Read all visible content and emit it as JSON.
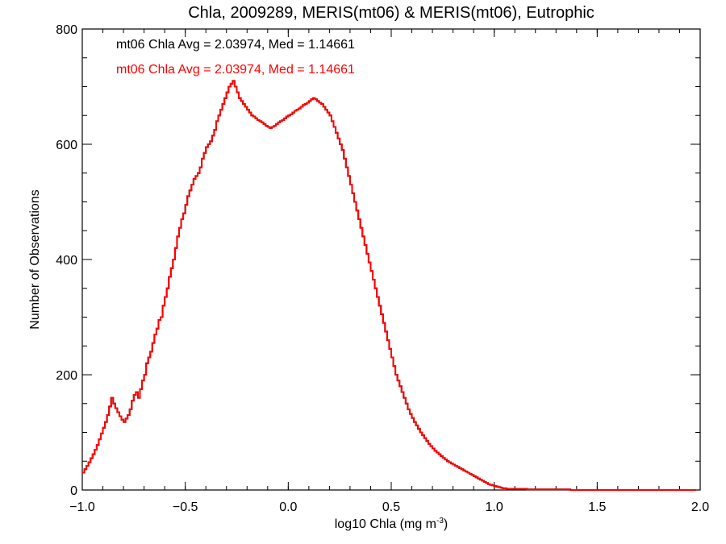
{
  "chart_data": {
    "type": "histogram",
    "title": "Chla, 2009289, MERIS(mt06) & MERIS(mt06), Eutrophic",
    "xlabel": "log10 Chla (mg m",
    "xlabel_sup": "-3",
    "xlabel_tail": ")",
    "ylabel": "Number of Observations",
    "xlim": [
      -1.0,
      2.0
    ],
    "ylim": [
      0,
      800
    ],
    "xticks": [
      -1.0,
      -0.5,
      0.0,
      0.5,
      1.0,
      1.5,
      2.0
    ],
    "xtick_labels": [
      "−1.0",
      "−0.5",
      "0.0",
      "0.5",
      "1.0",
      "1.5",
      "2.0"
    ],
    "yticks": [
      0,
      200,
      400,
      600,
      800
    ],
    "ytick_labels": [
      "0",
      "200",
      "400",
      "600",
      "800"
    ],
    "bin_start": -1.0,
    "bin_width": 0.01,
    "series": [
      {
        "name": "mt06 Chla Avg = 2.03974, Med = 1.14661",
        "color": "#000000",
        "values": [
          30,
          36,
          42,
          48,
          55,
          62,
          70,
          78,
          88,
          98,
          108,
          118,
          130,
          145,
          160,
          150,
          142,
          135,
          128,
          122,
          118,
          124,
          130,
          140,
          155,
          165,
          170,
          160,
          175,
          190,
          200,
          220,
          230,
          240,
          255,
          270,
          280,
          295,
          300,
          320,
          335,
          350,
          370,
          385,
          400,
          420,
          440,
          455,
          470,
          480,
          495,
          510,
          520,
          530,
          540,
          545,
          550,
          560,
          575,
          585,
          595,
          600,
          605,
          615,
          625,
          640,
          650,
          660,
          670,
          680,
          690,
          700,
          705,
          710,
          700,
          690,
          680,
          675,
          670,
          665,
          660,
          655,
          650,
          648,
          645,
          642,
          640,
          638,
          635,
          632,
          630,
          628,
          630,
          632,
          635,
          638,
          640,
          642,
          645,
          648,
          650,
          652,
          655,
          658,
          660,
          662,
          665,
          668,
          670,
          672,
          675,
          678,
          680,
          678,
          675,
          672,
          670,
          665,
          660,
          655,
          650,
          640,
          630,
          620,
          610,
          600,
          590,
          575,
          560,
          545,
          530,
          515,
          500,
          485,
          470,
          455,
          440,
          425,
          410,
          395,
          380,
          365,
          350,
          335,
          320,
          305,
          290,
          275,
          260,
          245,
          230,
          215,
          200,
          190,
          180,
          170,
          160,
          150,
          140,
          132,
          125,
          118,
          112,
          106,
          100,
          95,
          90,
          85,
          80,
          76,
          72,
          68,
          65,
          62,
          59,
          56,
          53,
          50,
          48,
          46,
          44,
          42,
          40,
          38,
          36,
          34,
          32,
          30,
          28,
          26,
          24,
          22,
          20,
          18,
          16,
          14,
          12,
          10,
          9,
          8,
          7,
          6,
          5,
          4,
          3,
          3,
          2,
          2,
          2,
          2,
          2,
          2,
          2,
          2,
          2,
          2,
          1,
          1,
          1,
          1,
          1,
          1,
          1,
          1,
          1,
          1,
          1,
          1,
          1,
          1,
          1,
          1,
          1,
          1,
          1,
          1,
          1,
          0,
          0,
          0,
          0,
          0,
          0,
          0,
          0,
          0,
          0,
          0,
          0,
          0,
          0,
          0,
          0,
          0,
          0,
          0,
          0,
          0,
          0,
          0,
          0,
          0,
          0,
          0,
          0,
          0,
          0,
          0,
          0,
          0,
          0,
          0,
          0,
          0,
          0,
          0,
          0,
          0,
          0,
          0,
          0,
          0,
          0,
          0,
          0,
          0,
          0,
          0,
          0,
          0,
          0,
          0,
          0,
          0,
          0,
          0,
          0,
          0
        ]
      },
      {
        "name": "mt06 Chla Avg = 2.03974, Med = 1.14661",
        "color": "#ff0000",
        "values": [
          30,
          36,
          42,
          48,
          55,
          62,
          70,
          78,
          88,
          98,
          108,
          118,
          130,
          145,
          160,
          150,
          142,
          135,
          128,
          122,
          118,
          124,
          130,
          140,
          155,
          165,
          170,
          160,
          175,
          190,
          200,
          220,
          230,
          240,
          255,
          270,
          280,
          295,
          300,
          320,
          335,
          350,
          370,
          385,
          400,
          420,
          440,
          455,
          470,
          480,
          495,
          510,
          520,
          530,
          540,
          545,
          550,
          560,
          575,
          585,
          595,
          600,
          605,
          615,
          625,
          640,
          650,
          660,
          670,
          680,
          690,
          700,
          705,
          710,
          700,
          690,
          680,
          675,
          670,
          665,
          660,
          655,
          650,
          648,
          645,
          642,
          640,
          638,
          635,
          632,
          630,
          628,
          630,
          632,
          635,
          638,
          640,
          642,
          645,
          648,
          650,
          652,
          655,
          658,
          660,
          662,
          665,
          668,
          670,
          672,
          675,
          678,
          680,
          678,
          675,
          672,
          670,
          665,
          660,
          655,
          650,
          640,
          630,
          620,
          610,
          600,
          590,
          575,
          560,
          545,
          530,
          515,
          500,
          485,
          470,
          455,
          440,
          425,
          410,
          395,
          380,
          365,
          350,
          335,
          320,
          305,
          290,
          275,
          260,
          245,
          230,
          215,
          200,
          190,
          180,
          170,
          160,
          150,
          140,
          132,
          125,
          118,
          112,
          106,
          100,
          95,
          90,
          85,
          80,
          76,
          72,
          68,
          65,
          62,
          59,
          56,
          53,
          50,
          48,
          46,
          44,
          42,
          40,
          38,
          36,
          34,
          32,
          30,
          28,
          26,
          24,
          22,
          20,
          18,
          16,
          14,
          12,
          10,
          9,
          8,
          7,
          6,
          5,
          4,
          3,
          3,
          2,
          2,
          2,
          2,
          2,
          2,
          2,
          2,
          2,
          2,
          1,
          1,
          1,
          1,
          1,
          1,
          1,
          1,
          1,
          1,
          1,
          1,
          1,
          1,
          1,
          1,
          1,
          1,
          1,
          1,
          1,
          0,
          0,
          0,
          0,
          0,
          0,
          0,
          0,
          0,
          0,
          0,
          0,
          0,
          0,
          0,
          0,
          0,
          0,
          0,
          0,
          0,
          0,
          0,
          0,
          0,
          0,
          0,
          0,
          0,
          0,
          0,
          0,
          0,
          0,
          0,
          0,
          0,
          0,
          0,
          0,
          0,
          0,
          0,
          0,
          0,
          0,
          0,
          0,
          0,
          0,
          0,
          0,
          0,
          0,
          0,
          0,
          0,
          0,
          0,
          0,
          0
        ]
      }
    ],
    "grid": false,
    "legend": "top-left"
  }
}
